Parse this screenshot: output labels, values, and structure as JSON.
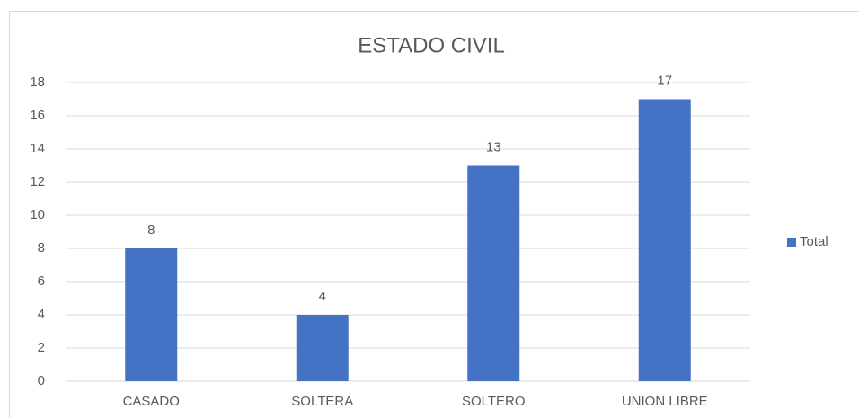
{
  "chart_data": {
    "type": "bar",
    "title": "ESTADO CIVIL",
    "categories": [
      "CASADO",
      "SOLTERA",
      "SOLTERO",
      "UNION LIBRE"
    ],
    "series": [
      {
        "name": "Total",
        "color": "#4472c4",
        "values": [
          8,
          4,
          13,
          17
        ]
      }
    ],
    "ylim": [
      0,
      18
    ],
    "yticks": [
      0,
      2,
      4,
      6,
      8,
      10,
      12,
      14,
      16,
      18
    ],
    "grid": true,
    "legend": "right",
    "data_labels": true
  }
}
